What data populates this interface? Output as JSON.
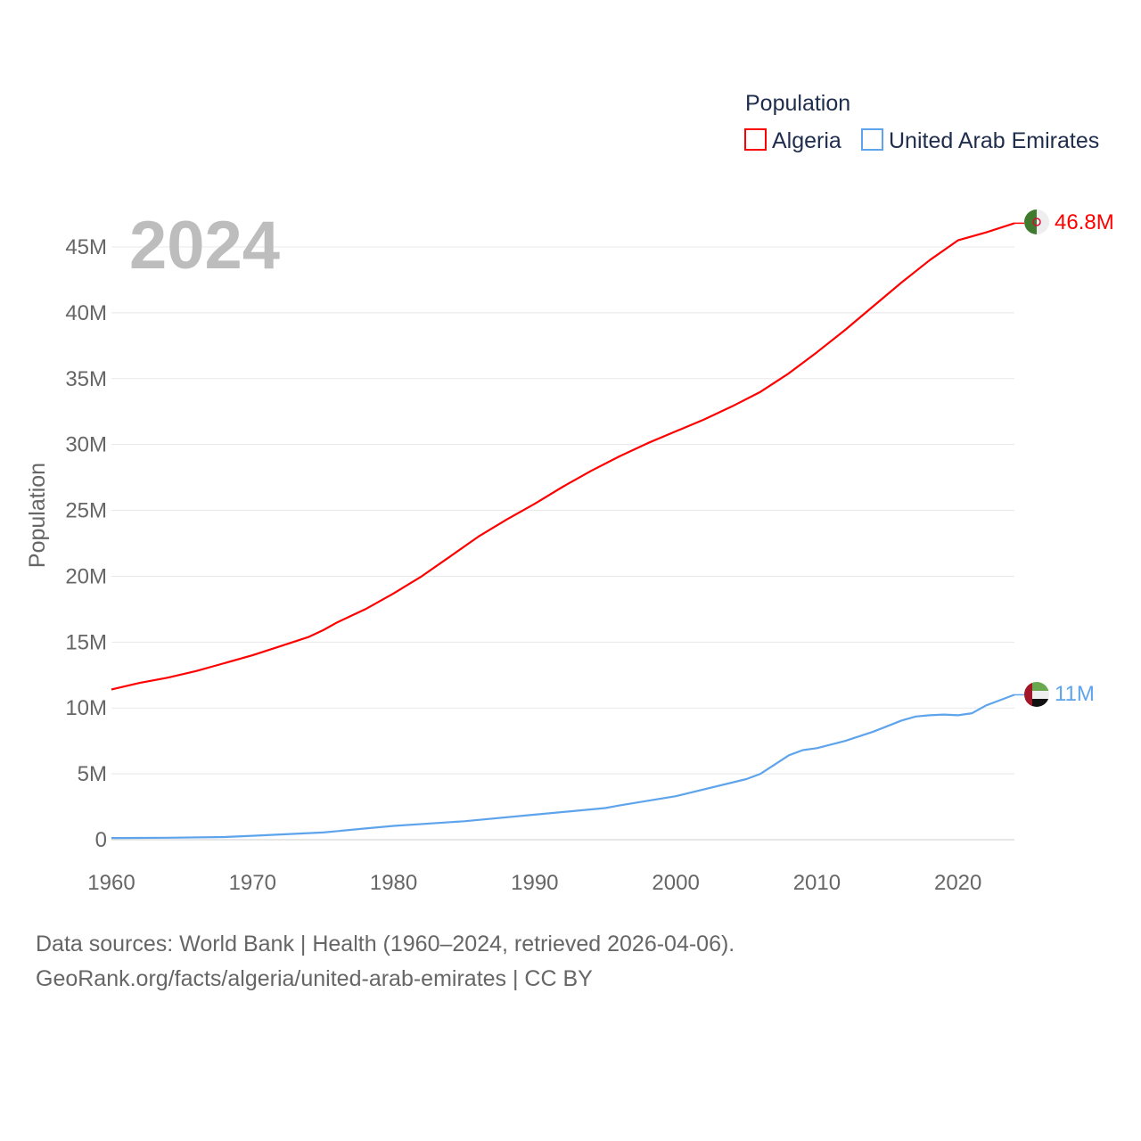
{
  "chart_data": {
    "type": "line",
    "title": "Population",
    "year_label": "2024",
    "xlabel": "",
    "ylabel": "Population",
    "xlim": [
      1960,
      2024
    ],
    "ylim": [
      0,
      47
    ],
    "grid": true,
    "legend_placement": "top-right",
    "x_ticks": [
      "1960",
      "1970",
      "1980",
      "1990",
      "2000",
      "2010",
      "2020"
    ],
    "y_ticks": [
      {
        "v": 0,
        "label": "0"
      },
      {
        "v": 5,
        "label": "5M"
      },
      {
        "v": 10,
        "label": "10M"
      },
      {
        "v": 15,
        "label": "15M"
      },
      {
        "v": 20,
        "label": "20M"
      },
      {
        "v": 25,
        "label": "25M"
      },
      {
        "v": 30,
        "label": "30M"
      },
      {
        "v": 35,
        "label": "35M"
      },
      {
        "v": 40,
        "label": "40M"
      },
      {
        "v": 45,
        "label": "45M"
      }
    ],
    "series": [
      {
        "name": "Algeria",
        "color": "#ff0000",
        "end_label": "46.8M",
        "x": [
          1960,
          1962,
          1964,
          1966,
          1968,
          1970,
          1972,
          1974,
          1975,
          1976,
          1977,
          1978,
          1980,
          1982,
          1984,
          1986,
          1988,
          1990,
          1992,
          1994,
          1996,
          1998,
          2000,
          2002,
          2004,
          2006,
          2008,
          2010,
          2012,
          2014,
          2016,
          2018,
          2020,
          2022,
          2024
        ],
        "y": [
          11.4,
          11.9,
          12.3,
          12.8,
          13.4,
          14.0,
          14.7,
          15.4,
          15.9,
          16.5,
          17.0,
          17.5,
          18.7,
          20.0,
          21.5,
          23.0,
          24.3,
          25.5,
          26.8,
          28.0,
          29.1,
          30.1,
          31.0,
          31.9,
          32.9,
          34.0,
          35.4,
          37.0,
          38.7,
          40.5,
          42.3,
          44.0,
          45.5,
          46.1,
          46.8
        ]
      },
      {
        "name": "United Arab Emirates",
        "color": "#5ea4ec",
        "end_label": "11M",
        "x": [
          1960,
          1964,
          1968,
          1970,
          1972,
          1975,
          1978,
          1980,
          1985,
          1990,
          1995,
          1996,
          2000,
          2005,
          2006,
          2007,
          2008,
          2009,
          2010,
          2012,
          2014,
          2016,
          2017,
          2018,
          2019,
          2020,
          2021,
          2022,
          2023,
          2024
        ],
        "y": [
          0.13,
          0.15,
          0.2,
          0.3,
          0.4,
          0.55,
          0.85,
          1.05,
          1.4,
          1.9,
          2.4,
          2.6,
          3.3,
          4.6,
          5.0,
          5.7,
          6.4,
          6.8,
          6.95,
          7.5,
          8.2,
          9.05,
          9.35,
          9.45,
          9.5,
          9.45,
          9.6,
          10.2,
          10.6,
          11.0
        ]
      }
    ]
  },
  "footer": {
    "line1": "Data sources: World Bank | Health (1960–2024, retrieved 2026-04-06).",
    "line2": "GeoRank.org/facts/algeria/united-arab-emirates | CC BY"
  }
}
